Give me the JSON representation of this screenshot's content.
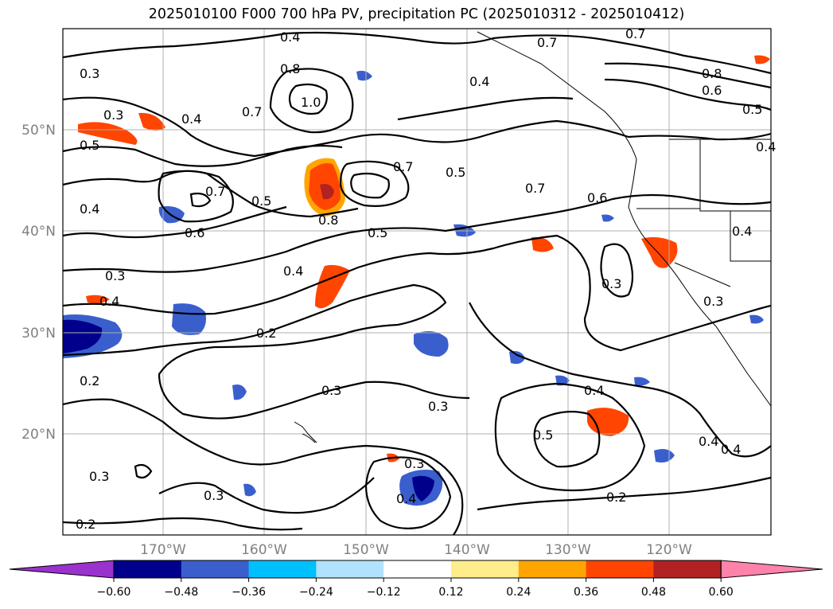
{
  "title": "2025010100 F000 700 hPa PV, precipitation PC (2025010312 - 2025010412)",
  "lat_labels": [
    "50°N",
    "40°N",
    "30°N",
    "20°N"
  ],
  "lon_labels": [
    "170°W",
    "160°W",
    "150°W",
    "140°W",
    "130°W",
    "120°W"
  ],
  "contour_labels": [
    "0.4",
    "0.7",
    "0.7",
    "0.3",
    "0.8",
    "0.4",
    "0.8",
    "0.6",
    "0.5",
    "0.3",
    "0.7",
    "1.0",
    "0.4",
    "0.5",
    "0.7",
    "0.5",
    "0.7",
    "0.6",
    "0.4",
    "0.7",
    "0.5",
    "0.5",
    "0.8",
    "0.6",
    "0.4",
    "0.4",
    "0.3",
    "0.4",
    "0.4",
    "0.3",
    "0.3",
    "0.2",
    "0.2",
    "0.3",
    "0.3",
    "0.4",
    "0.5",
    "0.4",
    "0.4",
    "0.3",
    "0.3",
    "0.4",
    "0.3",
    "0.2",
    "0.2"
  ],
  "colorbar": {
    "colors": [
      "#9a32cd",
      "#00008b",
      "#3a5fcd",
      "#00bfff",
      "#b0e2ff",
      "#ffffff",
      "#ffec8b",
      "#ffa500",
      "#ff4500",
      "#b22222",
      "#ff82ab"
    ],
    "ticks": [
      "−0.60",
      "−0.48",
      "−0.36",
      "−0.24",
      "−0.12",
      "0.12",
      "0.24",
      "0.36",
      "0.48",
      "0.60"
    ]
  }
}
